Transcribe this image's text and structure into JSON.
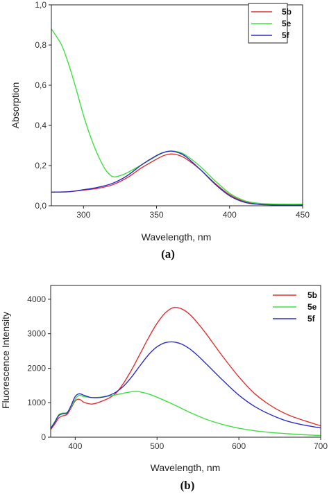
{
  "chart_data": [
    {
      "type": "line",
      "panel_label": "(a)",
      "xlabel": "Wavelength, nm",
      "ylabel": "Absorption",
      "xlim": [
        278,
        450
      ],
      "ylim": [
        0,
        1.0
      ],
      "x_ticks": [
        300,
        350,
        400,
        450
      ],
      "y_ticks": [
        0,
        0.2,
        0.4,
        0.6,
        0.8,
        1.0
      ],
      "y_tick_labels": [
        "0,0",
        "0,2",
        "0,4",
        "0,6",
        "0,8",
        "1,0"
      ],
      "grid": false,
      "legend_position": "top-right",
      "series": [
        {
          "name": "5b",
          "color": "#e03030",
          "x": [
            278,
            290,
            300,
            310,
            320,
            330,
            340,
            350,
            355,
            360,
            365,
            370,
            380,
            390,
            400,
            410,
            420,
            430,
            440,
            450
          ],
          "y": [
            0.068,
            0.07,
            0.078,
            0.087,
            0.105,
            0.14,
            0.19,
            0.232,
            0.25,
            0.258,
            0.252,
            0.235,
            0.18,
            0.112,
            0.055,
            0.022,
            0.01,
            0.007,
            0.006,
            0.006
          ]
        },
        {
          "name": "5e",
          "color": "#3ee03e",
          "x": [
            278,
            285,
            290,
            295,
            300,
            305,
            310,
            315,
            320,
            325,
            330,
            340,
            350,
            355,
            360,
            365,
            370,
            380,
            390,
            400,
            410,
            420,
            430,
            440,
            450
          ],
          "y": [
            0.88,
            0.8,
            0.7,
            0.58,
            0.45,
            0.34,
            0.25,
            0.18,
            0.145,
            0.15,
            0.165,
            0.205,
            0.248,
            0.265,
            0.272,
            0.268,
            0.252,
            0.195,
            0.125,
            0.062,
            0.026,
            0.012,
            0.009,
            0.008,
            0.008
          ]
        },
        {
          "name": "5f",
          "color": "#2c2cc8",
          "x": [
            278,
            290,
            300,
            310,
            320,
            330,
            340,
            350,
            355,
            360,
            365,
            370,
            380,
            390,
            400,
            410,
            420,
            430,
            440,
            450
          ],
          "y": [
            0.068,
            0.07,
            0.08,
            0.092,
            0.112,
            0.15,
            0.205,
            0.25,
            0.266,
            0.272,
            0.264,
            0.245,
            0.18,
            0.108,
            0.05,
            0.018,
            0.007,
            0.004,
            0.003,
            0.003
          ]
        }
      ]
    },
    {
      "type": "line",
      "panel_label": "(b)",
      "xlabel": "Wavelength, nm",
      "ylabel": "Fluorescence Intensity",
      "xlim": [
        370,
        700
      ],
      "ylim": [
        0,
        4400
      ],
      "x_ticks": [
        400,
        500,
        600,
        700
      ],
      "y_ticks": [
        0,
        1000,
        2000,
        3000,
        4000
      ],
      "y_tick_labels": [
        "0",
        "1000",
        "2000",
        "3000",
        "4000"
      ],
      "grid": false,
      "legend_position": "top-right",
      "series": [
        {
          "name": "5b",
          "color": "#e03030",
          "x": [
            370,
            375,
            380,
            385,
            390,
            395,
            400,
            405,
            410,
            415,
            420,
            425,
            430,
            440,
            450,
            460,
            470,
            480,
            490,
            500,
            510,
            520,
            530,
            540,
            550,
            560,
            580,
            600,
            620,
            640,
            660,
            680,
            700
          ],
          "y": [
            220,
            380,
            560,
            620,
            660,
            850,
            1050,
            1100,
            1020,
            980,
            960,
            980,
            1020,
            1120,
            1280,
            1600,
            2000,
            2450,
            2900,
            3300,
            3600,
            3760,
            3720,
            3560,
            3300,
            3000,
            2350,
            1750,
            1250,
            900,
            650,
            480,
            330
          ]
        },
        {
          "name": "5e",
          "color": "#3ee03e",
          "x": [
            370,
            375,
            380,
            385,
            390,
            395,
            400,
            405,
            410,
            420,
            430,
            440,
            450,
            460,
            470,
            475,
            480,
            490,
            500,
            520,
            540,
            560,
            580,
            600,
            620,
            640,
            660,
            680,
            700
          ],
          "y": [
            260,
            450,
            650,
            700,
            720,
            880,
            1100,
            1220,
            1180,
            1150,
            1160,
            1190,
            1230,
            1280,
            1320,
            1330,
            1310,
            1250,
            1160,
            950,
            720,
            520,
            370,
            260,
            185,
            135,
            100,
            70,
            50
          ]
        },
        {
          "name": "5f",
          "color": "#2c2cc8",
          "x": [
            370,
            375,
            380,
            385,
            390,
            395,
            400,
            405,
            410,
            415,
            420,
            430,
            440,
            450,
            460,
            470,
            480,
            490,
            500,
            510,
            520,
            530,
            540,
            550,
            560,
            580,
            600,
            620,
            640,
            660,
            680,
            700
          ],
          "y": [
            250,
            430,
            630,
            680,
            700,
            920,
            1180,
            1260,
            1220,
            1180,
            1150,
            1150,
            1200,
            1310,
            1500,
            1780,
            2100,
            2400,
            2620,
            2740,
            2760,
            2700,
            2560,
            2360,
            2130,
            1660,
            1220,
            880,
            640,
            460,
            350,
            270
          ]
        }
      ]
    }
  ]
}
